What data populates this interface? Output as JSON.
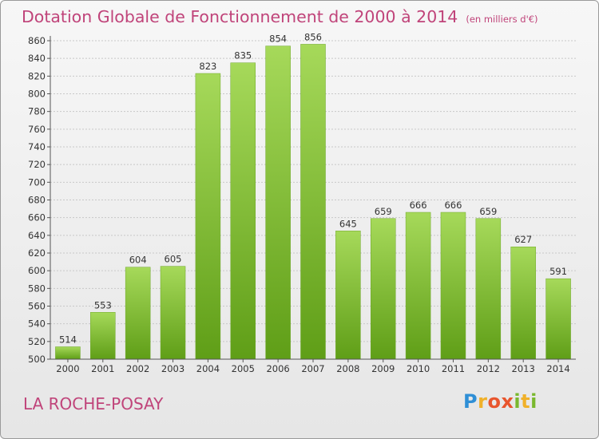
{
  "chart_data": {
    "type": "bar",
    "title": "Dotation Globale de Fonctionnement de 2000 à 2014",
    "unit_label": "(en milliers d'€)",
    "categories": [
      "2000",
      "2001",
      "2002",
      "2003",
      "2004",
      "2005",
      "2006",
      "2007",
      "2008",
      "2009",
      "2010",
      "2011",
      "2012",
      "2013",
      "2014"
    ],
    "values": [
      514,
      553,
      604,
      605,
      823,
      835,
      854,
      856,
      645,
      659,
      666,
      666,
      659,
      627,
      591
    ],
    "ylim": [
      500,
      860
    ],
    "ytick_step": 20,
    "grid": true,
    "bar_color": "#8cc63f"
  },
  "commune": "LA ROCHE-POSAY",
  "logo": {
    "p": "P",
    "r": "r",
    "o": "o",
    "x": "x",
    "i1": "i",
    "t": "t",
    "i2": "i"
  }
}
